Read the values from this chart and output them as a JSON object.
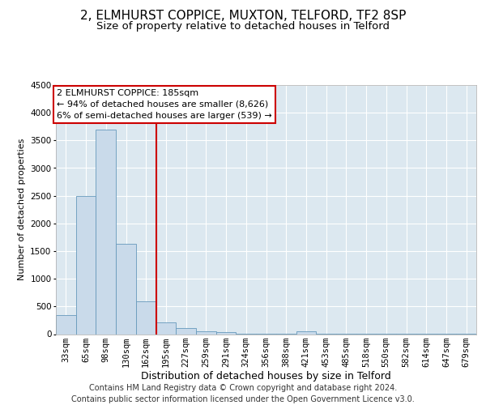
{
  "title1": "2, ELMHURST COPPICE, MUXTON, TELFORD, TF2 8SP",
  "title2": "Size of property relative to detached houses in Telford",
  "xlabel": "Distribution of detached houses by size in Telford",
  "ylabel": "Number of detached properties",
  "bar_color": "#c9daea",
  "bar_edge_color": "#6699bb",
  "background_color": "#dce8f0",
  "grid_color": "#ffffff",
  "annotation_box_color": "#ffffff",
  "annotation_border_color": "#cc0000",
  "vline_color": "#cc0000",
  "footer": "Contains HM Land Registry data © Crown copyright and database right 2024.\nContains public sector information licensed under the Open Government Licence v3.0.",
  "annotation_lines": [
    "2 ELMHURST COPPICE: 185sqm",
    "← 94% of detached houses are smaller (8,626)",
    "6% of semi-detached houses are larger (539) →"
  ],
  "categories": [
    "33sqm",
    "65sqm",
    "98sqm",
    "130sqm",
    "162sqm",
    "195sqm",
    "227sqm",
    "259sqm",
    "291sqm",
    "324sqm",
    "356sqm",
    "388sqm",
    "421sqm",
    "453sqm",
    "485sqm",
    "518sqm",
    "550sqm",
    "582sqm",
    "614sqm",
    "647sqm",
    "679sqm"
  ],
  "values": [
    350,
    2500,
    3700,
    1625,
    600,
    215,
    105,
    55,
    35,
    5,
    5,
    5,
    55,
    5,
    5,
    5,
    5,
    5,
    5,
    5,
    5
  ],
  "vline_x_index": 4.5,
  "ylim": [
    0,
    4500
  ],
  "yticks": [
    0,
    500,
    1000,
    1500,
    2000,
    2500,
    3000,
    3500,
    4000,
    4500
  ],
  "title1_fontsize": 11,
  "title2_fontsize": 9.5,
  "xlabel_fontsize": 9,
  "ylabel_fontsize": 8,
  "tick_fontsize": 7.5,
  "annotation_fontsize": 8,
  "footer_fontsize": 7
}
